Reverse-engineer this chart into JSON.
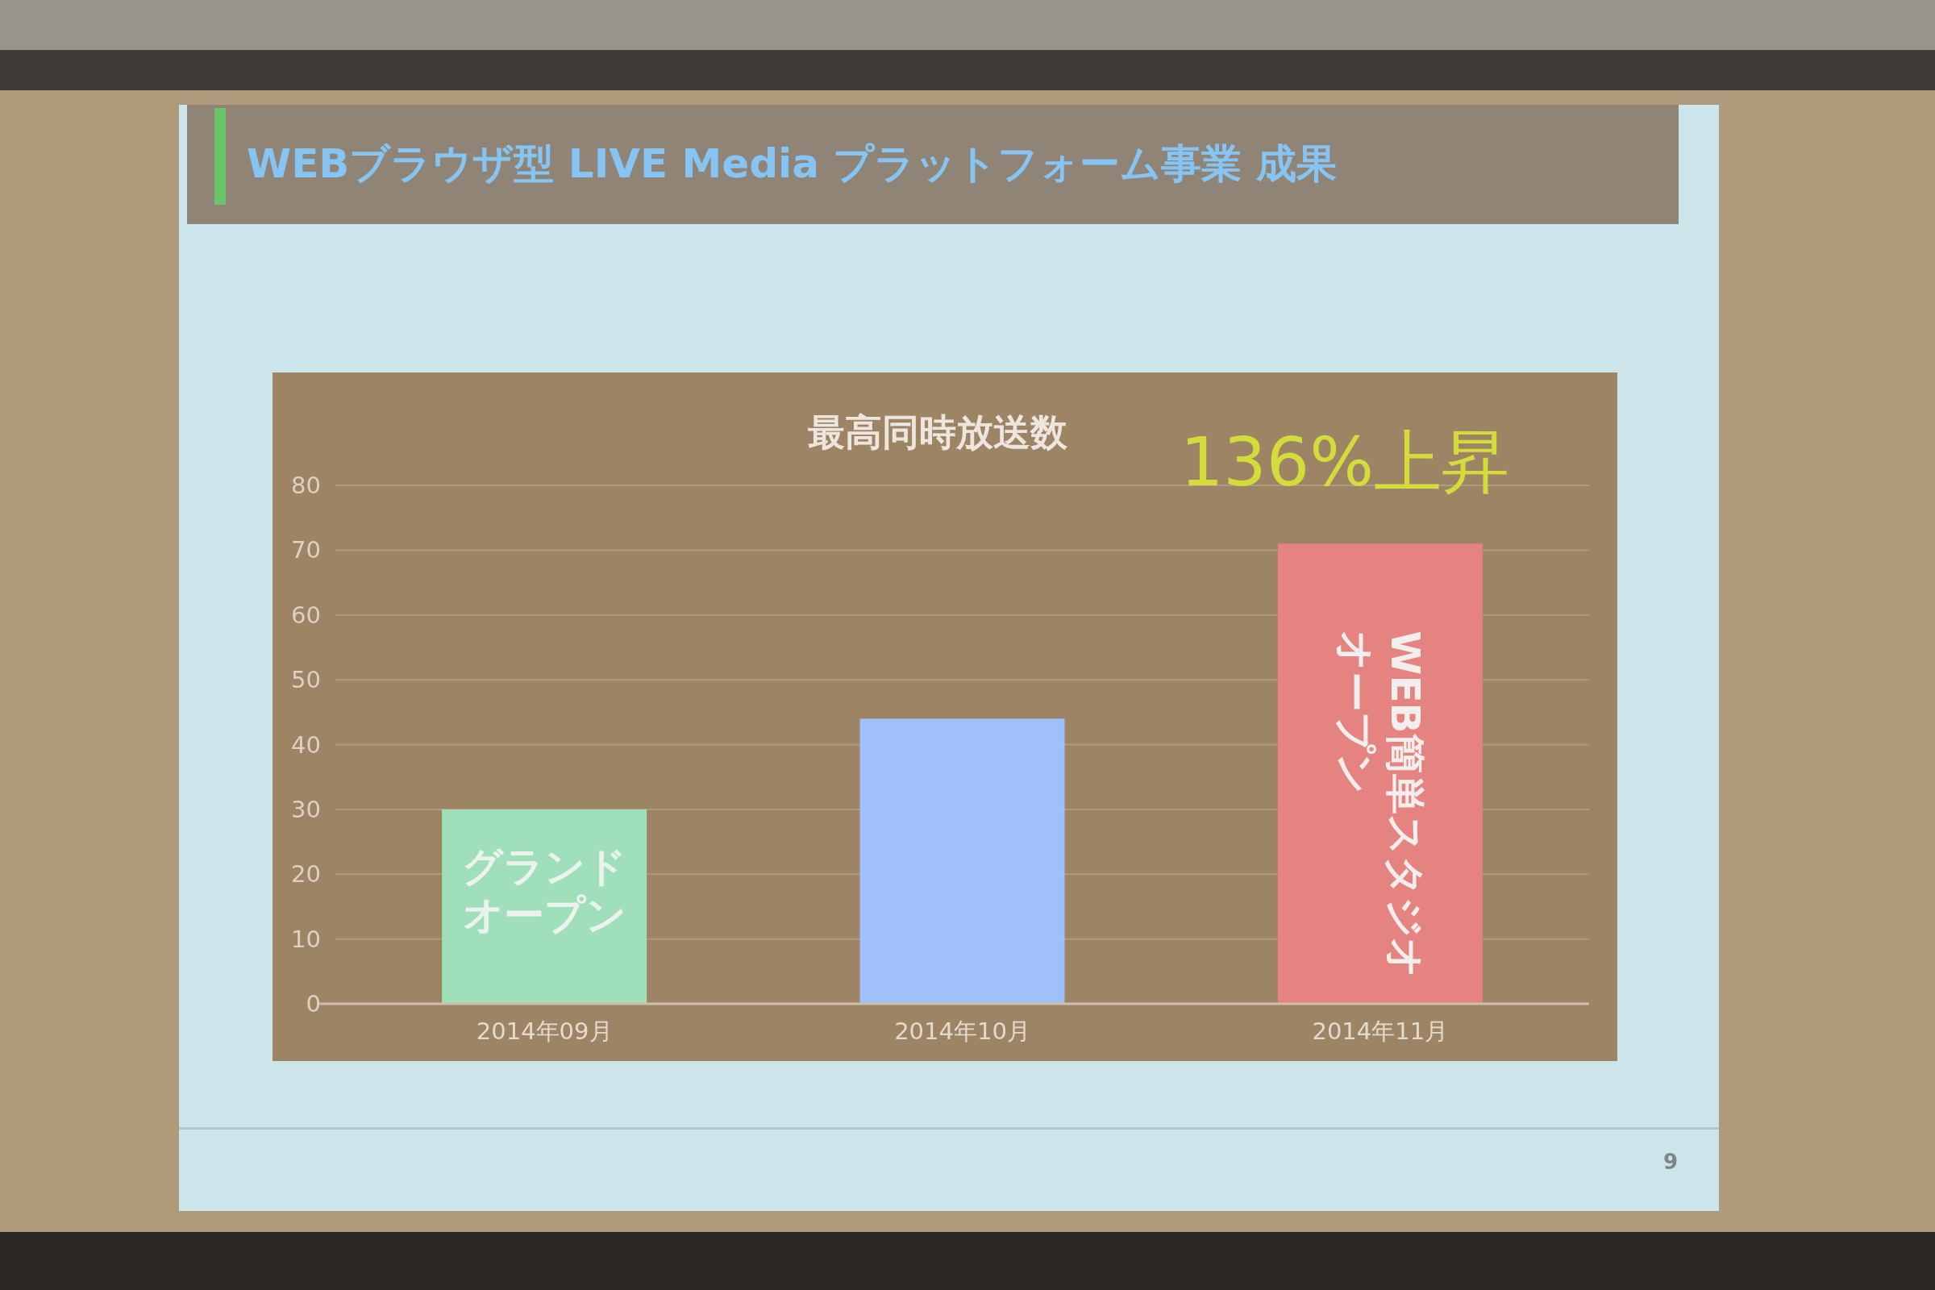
{
  "chart_data": {
    "type": "bar",
    "title": "WEBブラウザ型 LIVE Media プラットフォーム事業 成果",
    "subtitle": "最高同時放送数",
    "categories": [
      "2014年09月",
      "2014年10月",
      "2014年11月"
    ],
    "values": [
      30,
      44,
      71
    ],
    "colors": [
      "#9fe0bb",
      "#9fc0f8",
      "#e4837f"
    ],
    "ylim": [
      0,
      80
    ],
    "yticks": [
      0,
      10,
      20,
      30,
      40,
      50,
      60,
      70,
      80
    ],
    "grid": "y",
    "annotations": [
      "136%上昇",
      "グランドオープン",
      "WEB簡単スタジオオープン",
      "9"
    ]
  }
}
